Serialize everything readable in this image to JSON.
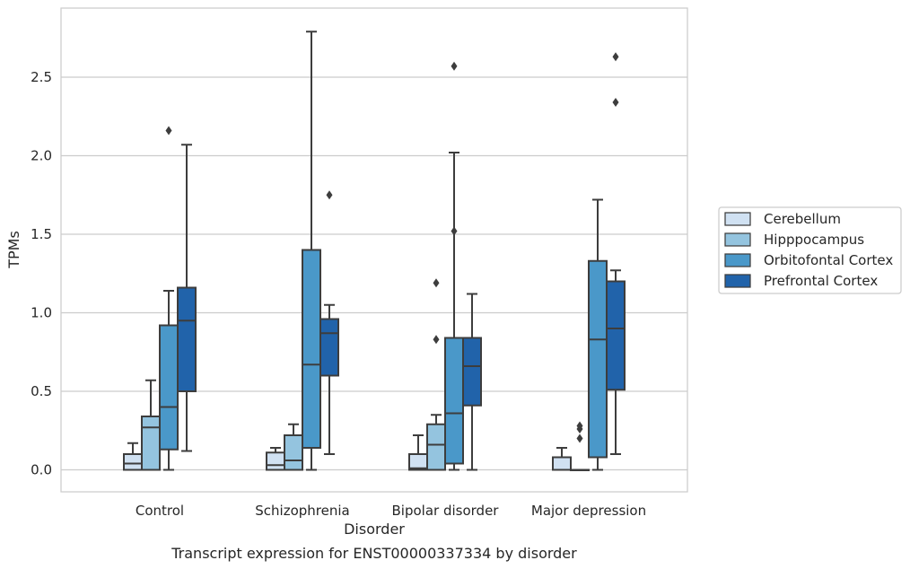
{
  "chart_data": {
    "type": "boxplot",
    "title": "",
    "caption": "Transcript expression for ENST00000337334 by disorder",
    "xlabel": "Disorder",
    "ylabel": "TPMs",
    "ylim": [
      -0.14,
      2.94
    ],
    "yticks": [
      0.0,
      0.5,
      1.0,
      1.5,
      2.0,
      2.5
    ],
    "ytick_labels": [
      "0.0",
      "0.5",
      "1.0",
      "1.5",
      "2.0",
      "2.5"
    ],
    "grid": "horizontal",
    "legend_position": "right",
    "categories": [
      "Control",
      "Schizophrenia",
      "Bipolar disorder",
      "Major depression"
    ],
    "series": [
      {
        "name": "Cerebellum",
        "color": "#d0e1f2",
        "boxes": [
          {
            "whisker_low": 0.0,
            "q1": 0.0,
            "median": 0.04,
            "q3": 0.1,
            "whisker_high": 0.17,
            "outliers": []
          },
          {
            "whisker_low": 0.0,
            "q1": 0.0,
            "median": 0.03,
            "q3": 0.11,
            "whisker_high": 0.14,
            "outliers": []
          },
          {
            "whisker_low": 0.0,
            "q1": 0.0,
            "median": 0.01,
            "q3": 0.1,
            "whisker_high": 0.22,
            "outliers": []
          },
          {
            "whisker_low": 0.0,
            "q1": 0.0,
            "median": 0.0,
            "q3": 0.08,
            "whisker_high": 0.14,
            "outliers": []
          }
        ]
      },
      {
        "name": "Hipppocampus",
        "color": "#94c4df",
        "boxes": [
          {
            "whisker_low": 0.0,
            "q1": 0.0,
            "median": 0.27,
            "q3": 0.34,
            "whisker_high": 0.57,
            "outliers": []
          },
          {
            "whisker_low": 0.0,
            "q1": 0.0,
            "median": 0.06,
            "q3": 0.22,
            "whisker_high": 0.29,
            "outliers": []
          },
          {
            "whisker_low": 0.0,
            "q1": 0.0,
            "median": 0.16,
            "q3": 0.29,
            "whisker_high": 0.35,
            "outliers": [
              0.83,
              1.19
            ]
          },
          {
            "whisker_low": 0.0,
            "q1": 0.0,
            "median": 0.0,
            "q3": 0.0,
            "whisker_high": 0.0,
            "outliers": [
              0.2,
              0.26,
              0.28
            ]
          }
        ]
      },
      {
        "name": "Orbitofontal Cortex",
        "color": "#4a98c9",
        "boxes": [
          {
            "whisker_low": 0.0,
            "q1": 0.13,
            "median": 0.4,
            "q3": 0.92,
            "whisker_high": 1.14,
            "outliers": [
              2.16
            ]
          },
          {
            "whisker_low": 0.0,
            "q1": 0.14,
            "median": 0.67,
            "q3": 1.4,
            "whisker_high": 2.79,
            "outliers": []
          },
          {
            "whisker_low": 0.0,
            "q1": 0.04,
            "median": 0.36,
            "q3": 0.84,
            "whisker_high": 2.02,
            "outliers": [
              1.52,
              2.57
            ]
          },
          {
            "whisker_low": 0.0,
            "q1": 0.08,
            "median": 0.83,
            "q3": 1.33,
            "whisker_high": 1.72,
            "outliers": []
          }
        ]
      },
      {
        "name": "Prefrontal Cortex",
        "color": "#2163aa",
        "boxes": [
          {
            "whisker_low": 0.12,
            "q1": 0.5,
            "median": 0.95,
            "q3": 1.16,
            "whisker_high": 2.07,
            "outliers": []
          },
          {
            "whisker_low": 0.1,
            "q1": 0.6,
            "median": 0.87,
            "q3": 0.96,
            "whisker_high": 1.05,
            "outliers": [
              1.75
            ]
          },
          {
            "whisker_low": 0.0,
            "q1": 0.41,
            "median": 0.66,
            "q3": 0.84,
            "whisker_high": 1.12,
            "outliers": []
          },
          {
            "whisker_low": 0.1,
            "q1": 0.51,
            "median": 0.9,
            "q3": 1.2,
            "whisker_high": 1.27,
            "outliers": [
              2.34,
              2.63
            ]
          }
        ]
      }
    ]
  }
}
